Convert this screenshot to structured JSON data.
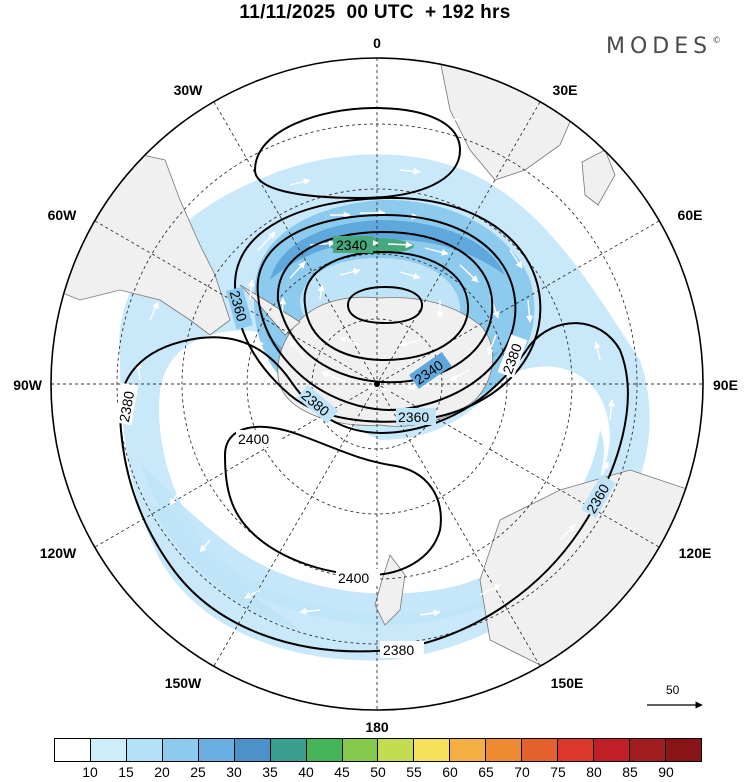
{
  "header": {
    "title": "11/11/2025  00 UTC  + 192 hrs",
    "brand": "MODES",
    "brand_mark": "©"
  },
  "map": {
    "projection": "south-polar-stereographic",
    "longitude_labels": {
      "top": "0",
      "upper_right": "30E",
      "right_upper": "60E",
      "right": "90E",
      "right_lower": "120E",
      "lower_right": "150E",
      "bottom": "180",
      "lower_left": "150W",
      "left_lower": "120W",
      "left": "90W",
      "left_upper": "60W",
      "upper_left": "30W"
    },
    "contour_labels": {
      "c2340_top": "2340",
      "c2340_right": "2340",
      "c2360_left": "2360",
      "c2360_bottom": "2360",
      "c2360_east": "2360",
      "c2380_left": "2380",
      "c2380_inner": "2380",
      "c2380_right": "2380",
      "c2380_bottom": "2380",
      "c2400_top": "2400",
      "c2400_bottom": "2400"
    },
    "colors": {
      "land": "#f0f0f0",
      "land_border": "#777777",
      "shade_light": "#bfe4f8",
      "shade_mid": "#8ccbee",
      "shade_dark": "#5fa8dc",
      "shade_green": "#46a87c"
    }
  },
  "reference_vector": {
    "label": "50"
  },
  "colorbar": {
    "labels": [
      "10",
      "15",
      "20",
      "25",
      "30",
      "35",
      "40",
      "45",
      "50",
      "55",
      "60",
      "65",
      "70",
      "75",
      "80",
      "85",
      "90"
    ],
    "colors": [
      "#ffffff",
      "#cfeefc",
      "#b3e1f7",
      "#8ccbee",
      "#69aee0",
      "#4b92c8",
      "#3c9e8e",
      "#45b55a",
      "#84c94b",
      "#c3dc50",
      "#f5e15a",
      "#f5b043",
      "#ee8a32",
      "#e4602d",
      "#d9382b",
      "#c01f27",
      "#a11c20",
      "#8a1518"
    ]
  }
}
